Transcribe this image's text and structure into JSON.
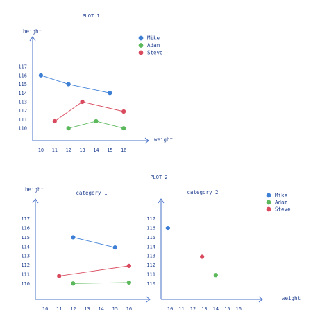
{
  "colors": {
    "Mike": "#3e7fd6",
    "Adam": "#5bb85b",
    "Steve": "#d94a5e",
    "axis": "#4a72c8",
    "text": "#1f3f8f"
  },
  "plot1": {
    "title": "PLOT 1",
    "chart_data": {
      "type": "line",
      "xlabel": "weight",
      "ylabel": "height",
      "xticks": [
        10,
        11,
        12,
        13,
        14,
        15,
        16
      ],
      "yticks": [
        110,
        111,
        112,
        113,
        114,
        115,
        116,
        117
      ],
      "xlim": [
        9.4,
        17.4
      ],
      "ylim": [
        108.6,
        119.6
      ],
      "legend": "top-right",
      "series": [
        {
          "name": "Mike",
          "x": [
            10,
            12,
            15
          ],
          "y": [
            116,
            115,
            114
          ]
        },
        {
          "name": "Adam",
          "x": [
            12,
            14,
            16
          ],
          "y": [
            110,
            110.8,
            110
          ]
        },
        {
          "name": "Steve",
          "x": [
            11,
            13,
            16
          ],
          "y": [
            110.8,
            113,
            111.9
          ]
        }
      ]
    }
  },
  "plot2": {
    "title": "PLOT 2",
    "legend": "top-right",
    "chart_data": [
      {
        "type": "line",
        "title": "category 1",
        "xlabel": "",
        "ylabel": "height",
        "xticks": [
          10,
          11,
          12,
          13,
          14,
          15,
          16
        ],
        "yticks": [
          110,
          111,
          112,
          113,
          114,
          115,
          116,
          117
        ],
        "xlim": [
          9.3,
          17.1
        ],
        "ylim": [
          108.3,
          118.4
        ],
        "series": [
          {
            "name": "Mike",
            "x": [
              12,
              15
            ],
            "y": [
              115,
              113.9
            ]
          },
          {
            "name": "Adam",
            "x": [
              12,
              16
            ],
            "y": [
              110,
              110.1
            ]
          },
          {
            "name": "Steve",
            "x": [
              11,
              16
            ],
            "y": [
              110.8,
              111.9
            ]
          }
        ]
      },
      {
        "type": "scatter",
        "title": "category 2",
        "xlabel": "weight",
        "ylabel": "",
        "xticks": [
          10,
          11,
          12,
          13,
          14,
          15,
          16
        ],
        "yticks": [
          110,
          111,
          112,
          113,
          114,
          115,
          116,
          117
        ],
        "xlim": [
          9.2,
          17.6
        ],
        "ylim": [
          108.3,
          118.4
        ],
        "series": [
          {
            "name": "Mike",
            "x": [
              9.8
            ],
            "y": [
              116
            ]
          },
          {
            "name": "Adam",
            "x": [
              14
            ],
            "y": [
              110.9
            ]
          },
          {
            "name": "Steve",
            "x": [
              12.8
            ],
            "y": [
              112.9
            ]
          }
        ]
      }
    ]
  }
}
